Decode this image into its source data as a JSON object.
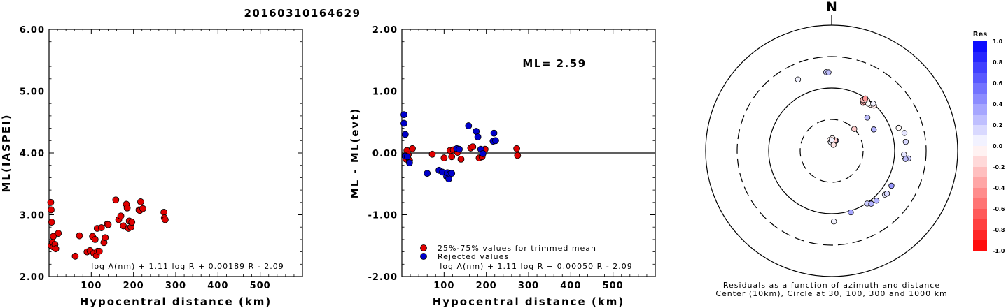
{
  "title": "20160310164629",
  "chart_data": [
    {
      "type": "scatter",
      "ylabel": "ML(IASPEI)",
      "xlabel": "Hypocentral distance (km)",
      "xlim": [
        0,
        600
      ],
      "ylim": [
        2.0,
        6.0
      ],
      "xticks": [
        "100",
        "200",
        "300",
        "400",
        "500"
      ],
      "yticks": [
        "2.00",
        "3.00",
        "4.00",
        "5.00",
        "6.00"
      ],
      "formula": "log A(nm) + 1.11 log R + 0.00189 R - 2.09",
      "series": [
        {
          "color": "#e00000",
          "points": [
            [
              4,
              3.2
            ],
            [
              5,
              3.08
            ],
            [
              6,
              2.88
            ],
            [
              5,
              2.5
            ],
            [
              8,
              2.55
            ],
            [
              10,
              2.65
            ],
            [
              10,
              2.48
            ],
            [
              14,
              2.52
            ],
            [
              16,
              2.45
            ],
            [
              22,
              2.7
            ],
            [
              62,
              2.33
            ],
            [
              72,
              2.66
            ],
            [
              90,
              2.4
            ],
            [
              97,
              2.42
            ],
            [
              103,
              2.65
            ],
            [
              106,
              2.38
            ],
            [
              109,
              2.6
            ],
            [
              112,
              2.34
            ],
            [
              114,
              2.78
            ],
            [
              115,
              2.41
            ],
            [
              119,
              2.41
            ],
            [
              124,
              2.79
            ],
            [
              130,
              2.55
            ],
            [
              133,
              2.63
            ],
            [
              138,
              2.85
            ],
            [
              140,
              2.84
            ],
            [
              158,
              3.24
            ],
            [
              165,
              2.92
            ],
            [
              170,
              2.98
            ],
            [
              176,
              2.82
            ],
            [
              183,
              3.17
            ],
            [
              185,
              3.11
            ],
            [
              188,
              2.78
            ],
            [
              190,
              2.9
            ],
            [
              194,
              2.8
            ],
            [
              196,
              2.88
            ],
            [
              213,
              3.08
            ],
            [
              215,
              3.07
            ],
            [
              217,
              3.21
            ],
            [
              222,
              3.1
            ],
            [
              272,
              3.04
            ],
            [
              273,
              2.95
            ],
            [
              275,
              2.92
            ]
          ]
        }
      ]
    },
    {
      "type": "scatter",
      "ylabel": "ML - ML(evt)",
      "xlabel": "Hypocentral distance (km)",
      "xlim": [
        0,
        600
      ],
      "ylim": [
        -2.0,
        2.0
      ],
      "xticks": [
        "100",
        "200",
        "300",
        "400",
        "500"
      ],
      "yticks": [
        "-2.00",
        "-1.00",
        "0.00",
        "1.00",
        "2.00"
      ],
      "annotation": "ML= 2.59",
      "formula": "log A(nm) + 1.11 log R + 0.00050 R - 2.09",
      "legend": [
        "25%-75% values for trimmed mean",
        "Rejected values"
      ],
      "series": [
        {
          "color": "#e00000",
          "points": [
            [
              10,
              -0.1
            ],
            [
              12,
              0.04
            ],
            [
              15,
              -0.03
            ],
            [
              18,
              -0.12
            ],
            [
              25,
              0.07
            ],
            [
              72,
              -0.02
            ],
            [
              100,
              -0.08
            ],
            [
              114,
              0.04
            ],
            [
              118,
              -0.06
            ],
            [
              122,
              0.05
            ],
            [
              132,
              0.01
            ],
            [
              140,
              -0.1
            ],
            [
              163,
              0.08
            ],
            [
              168,
              0.1
            ],
            [
              183,
              -0.08
            ],
            [
              190,
              -0.06
            ],
            [
              197,
              0.06
            ],
            [
              272,
              0.07
            ],
            [
              274,
              -0.04
            ]
          ]
        },
        {
          "color": "#0000cc",
          "points": [
            [
              5,
              0.62
            ],
            [
              5,
              0.48
            ],
            [
              8,
              0.3
            ],
            [
              8,
              -0.05
            ],
            [
              13,
              -0.06
            ],
            [
              18,
              -0.16
            ],
            [
              60,
              -0.33
            ],
            [
              88,
              -0.28
            ],
            [
              96,
              -0.31
            ],
            [
              106,
              -0.38
            ],
            [
              108,
              -0.32
            ],
            [
              111,
              -0.42
            ],
            [
              114,
              -0.34
            ],
            [
              118,
              -0.33
            ],
            [
              130,
              0.07
            ],
            [
              136,
              0.06
            ],
            [
              158,
              0.44
            ],
            [
              176,
              0.35
            ],
            [
              180,
              0.26
            ],
            [
              187,
              0.06
            ],
            [
              192,
              -0.01
            ],
            [
              216,
              0.19
            ],
            [
              218,
              0.32
            ],
            [
              222,
              0.2
            ]
          ]
        }
      ]
    }
  ],
  "polar": {
    "north_label": "N",
    "caption_line1": "Residuals as a function of azimuth and distance",
    "caption_line2": "Center (10km), Circle at 30, 100, 300 and 1000 km",
    "stations": [
      [
        0,
        0.3,
        0.35,
        0.05
      ],
      [
        1,
        0.4,
        0.35,
        0.25
      ],
      [
        2,
        0.32,
        0.35,
        -0.2
      ],
      [
        3,
        -0.18,
        0.35,
        -0.05
      ],
      [
        4,
        -0.1,
        0.28,
        0.05
      ],
      [
        5,
        0.3,
        0.2,
        -0.1
      ],
      [
        6,
        0.05,
        0.4,
        -0.05
      ],
      [
        7,
        0.0,
        0.34,
        0.05
      ],
      [
        8,
        0.8,
        1.0,
        -0.2
      ],
      [
        9,
        1.1,
        1.5,
        0.3
      ],
      [
        10,
        0.82,
        1.55,
        0.25
      ],
      [
        11,
        0.58,
        1.83,
        -0.3
      ],
      [
        12,
        0.6,
        1.88,
        -0.35
      ],
      [
        13,
        0.55,
        1.9,
        -0.25
      ],
      [
        14,
        0.62,
        1.95,
        -0.15
      ],
      [
        15,
        0.7,
        1.92,
        -0.05
      ],
      [
        16,
        0.66,
        1.9,
        0.0
      ],
      [
        17,
        0.75,
        1.97,
        -0.1
      ],
      [
        18,
        0.72,
        2.0,
        0.05
      ],
      [
        19,
        0.57,
        1.98,
        -0.4
      ],
      [
        20,
        1.24,
        2.25,
        -0.02
      ],
      [
        21,
        1.33,
        2.38,
        0.1
      ],
      [
        22,
        1.45,
        2.37,
        0.15
      ],
      [
        23,
        1.65,
        2.32,
        0.05
      ],
      [
        24,
        1.62,
        2.3,
        0.1
      ],
      [
        25,
        1.67,
        2.45,
        0.2
      ],
      [
        26,
        1.68,
        2.36,
        0.25
      ],
      [
        27,
        2.1,
        2.2,
        0.4
      ],
      [
        28,
        2.26,
        2.19,
        0.1
      ],
      [
        29,
        2.23,
        2.22,
        0.15
      ],
      [
        30,
        2.41,
        2.13,
        0.3
      ],
      [
        31,
        2.5,
        2.08,
        0.25
      ],
      [
        32,
        2.55,
        2.02,
        0.2
      ],
      [
        33,
        2.5,
        2.1,
        0.3
      ],
      [
        34,
        2.84,
        2.05,
        0.35
      ],
      [
        35,
        3.11,
        2.25,
        0.05
      ],
      [
        36,
        -0.44,
        2.51,
        0.05
      ],
      [
        37,
        -0.07,
        2.51,
        0.2
      ],
      [
        38,
        -0.04,
        2.5,
        0.25
      ]
    ]
  },
  "colorbar": {
    "title": "Res",
    "labels": [
      "1.0",
      "0.8",
      "0.6",
      "0.4",
      "0.2",
      "0.0",
      "-0.2",
      "-0.4",
      "-0.6",
      "-0.8",
      "-1.0"
    ]
  }
}
